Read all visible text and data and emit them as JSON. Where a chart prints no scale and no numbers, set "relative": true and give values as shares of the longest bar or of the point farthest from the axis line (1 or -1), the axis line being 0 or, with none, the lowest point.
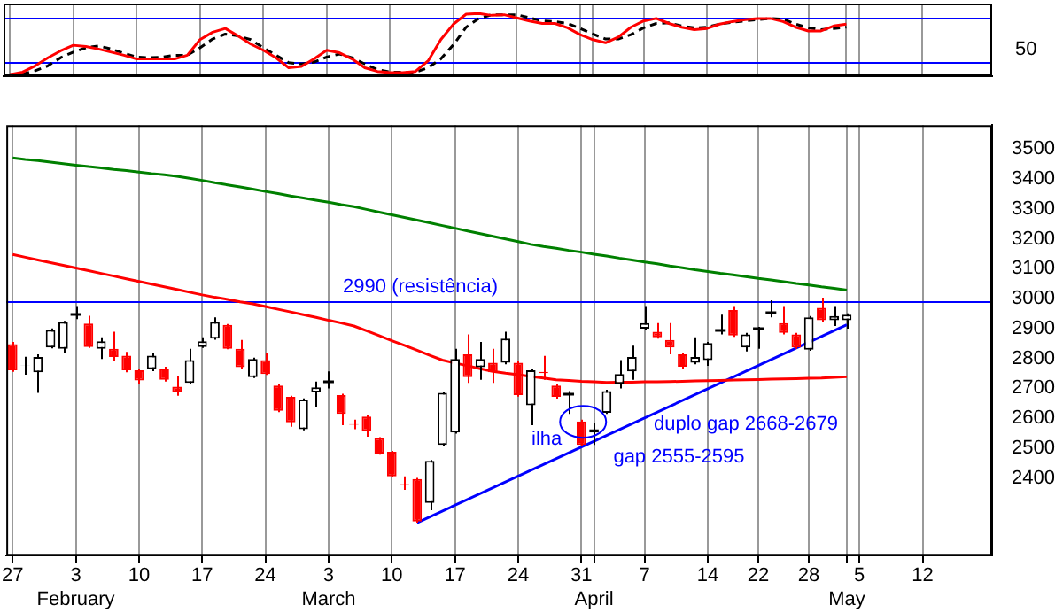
{
  "chart_data": [
    {
      "type": "line",
      "relative": true,
      "categories": [
        null,
        null,
        null,
        null,
        null,
        null,
        null,
        null,
        null,
        null,
        null,
        null,
        null,
        null,
        null,
        null,
        null,
        null,
        null,
        null,
        null,
        null,
        null,
        null,
        null,
        null,
        null,
        null,
        null,
        null,
        null,
        null,
        null,
        null,
        null,
        null,
        null,
        null,
        null,
        null,
        null,
        null,
        null,
        null,
        null,
        null,
        null,
        null,
        null,
        null,
        null,
        null,
        null,
        null,
        null,
        null,
        null,
        null,
        null,
        null,
        null,
        null,
        null,
        null,
        null,
        null,
        null,
        null,
        null,
        null,
        null,
        null,
        null,
        null,
        null,
        null,
        null,
        null
      ],
      "series": [
        {
          "color": "#ff0000",
          "values": [
            0.02,
            0.06,
            0.16,
            0.29,
            0.4,
            0.49,
            0.47,
            0.43,
            0.38,
            0.33,
            0.27,
            0.27,
            0.27,
            0.27,
            0.33,
            0.58,
            0.7,
            0.76,
            0.64,
            0.51,
            0.41,
            0.29,
            0.13,
            0.15,
            0.27,
            0.41,
            0.37,
            0.27,
            0.13,
            0.07,
            0.05,
            0.05,
            0.07,
            0.24,
            0.58,
            0.83,
            0.99,
            1,
            0.97,
            0.98,
            0.93,
            0.88,
            0.84,
            0.84,
            0.77,
            0.66,
            0.58,
            0.53,
            0.62,
            0.78,
            0.88,
            0.92,
            0.84,
            0.78,
            0.74,
            0.76,
            0.83,
            0.87,
            0.9,
            0.92,
            0.92,
            0.87,
            0.78,
            0.72,
            0.72,
            0.8,
            0.83,
            null,
            null,
            null,
            null,
            null,
            null,
            null,
            null,
            null,
            null,
            null
          ]
        },
        {
          "color": "#000000",
          "line_style": "dashed",
          "values": [
            0.02,
            0.03,
            0.08,
            0.16,
            0.29,
            0.38,
            0.45,
            0.48,
            0.43,
            0.36,
            0.3,
            0.29,
            0.3,
            0.33,
            0.33,
            0.45,
            0.59,
            0.67,
            0.64,
            0.58,
            0.45,
            0.33,
            0.21,
            0.19,
            0.22,
            0.3,
            0.35,
            0.29,
            0.19,
            0.1,
            0.06,
            0.06,
            0.06,
            0.13,
            0.27,
            0.5,
            0.78,
            0.92,
            0.98,
            0.98,
            0.98,
            0.93,
            0.88,
            0.87,
            0.84,
            0.76,
            0.67,
            0.59,
            0.59,
            0.66,
            0.77,
            0.84,
            0.85,
            0.8,
            0.77,
            0.78,
            0.83,
            0.86,
            0.88,
            0.9,
            0.92,
            0.91,
            0.83,
            0.77,
            0.74,
            0.76,
            0.78,
            null,
            null,
            null,
            null,
            null,
            null,
            null,
            null,
            null,
            null,
            null
          ]
        }
      ],
      "ref_lines": [
        {
          "axis": "y",
          "value": 0.93,
          "color": "#0000ff"
        },
        {
          "axis": "y",
          "value": 0.23,
          "color": "#0000ff"
        }
      ],
      "annotations": [
        "50"
      ],
      "grid": "x",
      "marker": "none",
      "legend": false
    },
    {
      "type": "candlestick",
      "categories": [
        "27",
        null,
        null,
        null,
        null,
        "3\nFebruary",
        null,
        null,
        null,
        null,
        "10",
        null,
        null,
        null,
        null,
        "17",
        null,
        null,
        null,
        null,
        "24",
        null,
        null,
        null,
        null,
        "3\nMarch",
        null,
        null,
        null,
        null,
        "10",
        null,
        null,
        null,
        null,
        "17",
        null,
        null,
        null,
        null,
        "24",
        null,
        null,
        null,
        null,
        "31",
        "\nApril",
        null,
        null,
        null,
        "7",
        null,
        null,
        null,
        null,
        "14",
        null,
        null,
        null,
        "22",
        null,
        null,
        null,
        "28",
        null,
        null,
        "\nMay",
        "5",
        null,
        null,
        null,
        null,
        "12",
        null,
        null,
        null,
        null,
        null
      ],
      "ohlc": [
        [
          2847,
          2855,
          2755,
          2760
        ],
        [
          2777,
          2805,
          2745,
          2776
        ],
        [
          2753,
          2813,
          2684,
          2804
        ],
        [
          2836,
          2900,
          2833,
          2895
        ],
        [
          2832,
          2925,
          2819,
          2921
        ],
        [
          2951,
          2975,
          2931,
          2951
        ],
        [
          2916,
          2942,
          2835,
          2838
        ],
        [
          2832,
          2870,
          2798,
          2857
        ],
        [
          2832,
          2889,
          2791,
          2804
        ],
        [
          2809,
          2821,
          2753,
          2760
        ],
        [
          2760,
          2765,
          2713,
          2726
        ],
        [
          2764,
          2817,
          2757,
          2809
        ],
        [
          2766,
          2772,
          2722,
          2728
        ],
        [
          2705,
          2741,
          2675,
          2686
        ],
        [
          2718,
          2832,
          2715,
          2794
        ],
        [
          2838,
          2870,
          2835,
          2857
        ],
        [
          2866,
          2937,
          2862,
          2921
        ],
        [
          2912,
          2915,
          2830,
          2832
        ],
        [
          2832,
          2861,
          2766,
          2770
        ],
        [
          2737,
          2802,
          2734,
          2798
        ],
        [
          2794,
          2819,
          2744,
          2747
        ],
        [
          2709,
          2713,
          2620,
          2624
        ],
        [
          2671,
          2675,
          2571,
          2586
        ],
        [
          2563,
          2666,
          2559,
          2662
        ],
        [
          2686,
          2722,
          2637,
          2703
        ],
        [
          2724,
          2756,
          2699,
          2724
        ],
        [
          2677,
          2681,
          2576,
          2614
        ],
        [
          2580,
          2595,
          2563,
          2578
        ],
        [
          2605,
          2610,
          2538,
          2557
        ],
        [
          2533,
          2536,
          2478,
          2481
        ],
        [
          2487,
          2490,
          2402,
          2405
        ],
        [
          2379,
          2405,
          2360,
          2377
        ],
        [
          2396,
          2400,
          2250,
          2254
        ],
        [
          2316,
          2460,
          2292,
          2457
        ],
        [
          2510,
          2688,
          2505,
          2684
        ],
        [
          2552,
          2832,
          2548,
          2798
        ],
        [
          2813,
          2880,
          2718,
          2737
        ],
        [
          2770,
          2855,
          2728,
          2798
        ],
        [
          2785,
          2832,
          2718,
          2753
        ],
        [
          2785,
          2889,
          2780,
          2866
        ],
        [
          2785,
          2790,
          2672,
          2677
        ],
        [
          2643,
          2765,
          2576,
          2760
        ],
        [
          2755,
          2808,
          2728,
          2750
        ],
        [
          2709,
          2713,
          2665,
          2671
        ],
        [
          2681,
          2690,
          2614,
          2681
        ],
        [
          2589,
          2595,
          2505,
          2510
        ],
        [
          2552,
          2582,
          2510,
          2563
        ],
        [
          2618,
          2695,
          2614,
          2690
        ],
        [
          2715,
          2794,
          2699,
          2747
        ],
        [
          2756,
          2842,
          2728,
          2804
        ],
        [
          2899,
          2975,
          2895,
          2918
        ],
        [
          2889,
          2918,
          2866,
          2870
        ],
        [
          2861,
          2918,
          2813,
          2836
        ],
        [
          2813,
          2818,
          2764,
          2772
        ],
        [
          2785,
          2870,
          2780,
          2804
        ],
        [
          2794,
          2855,
          2775,
          2851
        ],
        [
          2899,
          2946,
          2880,
          2899
        ],
        [
          2961,
          2975,
          2872,
          2876
        ],
        [
          2836,
          2885,
          2823,
          2880
        ],
        [
          2902,
          2905,
          2832,
          2902
        ],
        [
          2956,
          2994,
          2937,
          2956
        ],
        [
          2918,
          2975,
          2880,
          2885
        ],
        [
          2880,
          2885,
          2832,
          2836
        ],
        [
          2829,
          2941,
          2825,
          2937
        ],
        [
          2969,
          3003,
          2923,
          2927
        ],
        [
          2927,
          2975,
          2908,
          2941
        ],
        [
          2927,
          2950,
          2899,
          2946
        ],
        null,
        null,
        null,
        null,
        null,
        null,
        null,
        null,
        null,
        null,
        null
      ],
      "colors": [
        "#ff0000",
        "#000000",
        "#000000",
        "#000000",
        "#000000",
        "#000000",
        "#ff0000",
        "#000000",
        "#ff0000",
        "#ff0000",
        "#ff0000",
        "#000000",
        "#ff0000",
        "#ff0000",
        "#000000",
        "#000000",
        "#000000",
        "#ff0000",
        "#ff0000",
        "#000000",
        "#ff0000",
        "#ff0000",
        "#ff0000",
        "#000000",
        "#000000",
        "#000000",
        "#ff0000",
        "#ff0000",
        "#ff0000",
        "#ff0000",
        "#ff0000",
        "#ff0000",
        "#ff0000",
        "#000000",
        "#000000",
        "#000000",
        "#ff0000",
        "#000000",
        "#ff0000",
        "#000000",
        "#ff0000",
        "#000000",
        "#ff0000",
        "#ff0000",
        "#000000",
        "#ff0000",
        "#000000",
        "#000000",
        "#000000",
        "#000000",
        "#000000",
        "#ff0000",
        "#ff0000",
        "#ff0000",
        "#000000",
        "#000000",
        "#000000",
        "#ff0000",
        "#000000",
        "#000000",
        "#000000",
        "#ff0000",
        "#ff0000",
        "#000000",
        "#ff0000",
        "#000000",
        "#000000",
        null,
        null,
        null,
        null,
        null,
        null,
        null,
        null,
        null,
        null,
        null
      ],
      "series": [
        {
          "type": "line",
          "color": "#008000",
          "values": [
            3470,
            3465,
            3461,
            3456,
            3451,
            3446,
            3441,
            3437,
            3432,
            3428,
            3423,
            3418,
            3414,
            3409,
            3402,
            3395,
            3387,
            3380,
            3373,
            3366,
            3358,
            3351,
            3343,
            3336,
            3329,
            3322,
            3314,
            3307,
            3298,
            3289,
            3280,
            3271,
            3262,
            3253,
            3244,
            3235,
            3226,
            3217,
            3208,
            3199,
            3190,
            3181,
            3174,
            3168,
            3161,
            3155,
            3148,
            3142,
            3135,
            3129,
            3122,
            3116,
            3109,
            3103,
            3096,
            3090,
            3084,
            3079,
            3073,
            3067,
            3062,
            3056,
            3050,
            3045,
            3039,
            3034,
            3028,
            null,
            null,
            null,
            null,
            null,
            null,
            null,
            null,
            null,
            null,
            null
          ]
        },
        {
          "type": "line",
          "color": "#ff0000",
          "values": [
            3147,
            3138,
            3129,
            3120,
            3111,
            3102,
            3093,
            3084,
            3075,
            3066,
            3057,
            3048,
            3039,
            3030,
            3021,
            3012,
            3004,
            2997,
            2989,
            2982,
            2973,
            2964,
            2955,
            2946,
            2937,
            2927,
            2918,
            2908,
            2892,
            2876,
            2859,
            2843,
            2827,
            2810,
            2794,
            2784,
            2775,
            2765,
            2756,
            2750,
            2745,
            2739,
            2734,
            2728,
            2726,
            2723,
            2721,
            2719,
            2720,
            2720,
            2721,
            2721,
            2722,
            2723,
            2724,
            2725,
            2726,
            2727,
            2728,
            2729,
            2730,
            2731,
            2732,
            2733,
            2734,
            2736,
            2738,
            null,
            null,
            null,
            null,
            null,
            null,
            null,
            null,
            null,
            null,
            null
          ]
        },
        {
          "type": "line",
          "color": "#0000ff",
          "values": [
            null,
            null,
            null,
            null,
            null,
            null,
            null,
            null,
            null,
            null,
            null,
            null,
            null,
            null,
            null,
            null,
            null,
            null,
            null,
            null,
            null,
            null,
            null,
            null,
            null,
            null,
            null,
            null,
            null,
            null,
            null,
            null,
            2250,
            null,
            null,
            null,
            null,
            null,
            null,
            null,
            null,
            null,
            null,
            null,
            null,
            null,
            null,
            null,
            null,
            null,
            null,
            null,
            null,
            null,
            null,
            null,
            null,
            null,
            null,
            null,
            null,
            null,
            null,
            null,
            null,
            null,
            2912,
            null,
            null,
            null,
            null,
            null,
            null,
            null,
            null,
            null,
            null,
            null
          ]
        }
      ],
      "ylim": [
        2140,
        3580
      ],
      "yticks": [
        2400,
        2500,
        2600,
        2700,
        2800,
        2900,
        3000,
        3100,
        3200,
        3300,
        3400,
        3500
      ],
      "ref_lines": [
        {
          "axis": "y",
          "value": 2990,
          "label": "2990 (resistência)",
          "color": "#0000ff"
        }
      ],
      "annotations": [
        "ilha",
        "duplo gap 2668-2679",
        "gap 2555-2595"
      ],
      "grid": "x",
      "marker": "none",
      "legend": false
    }
  ]
}
